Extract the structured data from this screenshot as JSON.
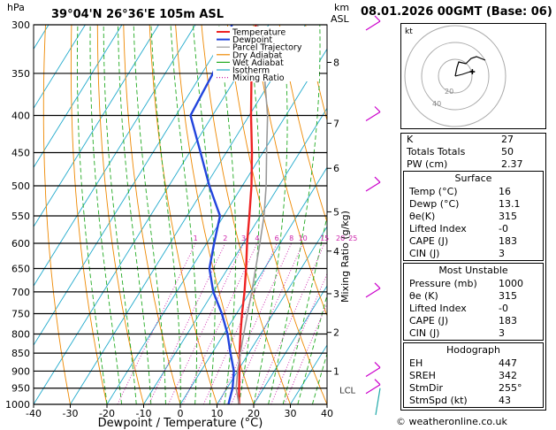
{
  "header": {
    "location": "39°04'N  26°36'E  105m  ASL",
    "hpa_label": "hPa",
    "km_label": "km",
    "asl_label": "ASL",
    "date": "08.01.2026  00GMT  (Base: 06)"
  },
  "chart_data": {
    "type": "line",
    "title": "Skew-T log-P diagram",
    "xlabel": "Dewpoint / Temperature (°C)",
    "ylabel": "hPa",
    "mixing_axis_label": "Mixing Ratio (g/kg)",
    "xlim": [
      -40,
      40
    ],
    "ylim": [
      1000,
      300
    ],
    "pressure_levels": [
      300,
      350,
      400,
      450,
      500,
      550,
      600,
      650,
      700,
      750,
      800,
      850,
      900,
      950,
      1000
    ],
    "x_ticks": [
      -40,
      -30,
      -20,
      -10,
      0,
      10,
      20,
      30,
      40
    ],
    "km_ticks": [
      {
        "km": 8,
        "p": 338
      },
      {
        "km": 7,
        "p": 410
      },
      {
        "km": 6,
        "p": 473
      },
      {
        "km": 5,
        "p": 543
      },
      {
        "km": 4,
        "p": 615
      },
      {
        "km": 3,
        "p": 704
      },
      {
        "km": 2,
        "p": 796
      },
      {
        "km": 1,
        "p": 900
      }
    ],
    "lcl": {
      "label": "LCL",
      "p": 950
    },
    "mixing_ratio_labels": [
      "1",
      "2",
      "3",
      "4",
      "6",
      "8",
      "10",
      "15",
      "20",
      "25"
    ],
    "mixing_ratio_values": [
      1,
      2,
      3,
      4,
      6,
      8,
      10,
      15,
      20,
      25
    ],
    "legend": [
      {
        "name": "Temperature",
        "color": "#ee2222",
        "style": "solid"
      },
      {
        "name": "Dewpoint",
        "color": "#2244dd",
        "style": "solid"
      },
      {
        "name": "Parcel Trajectory",
        "color": "#999999",
        "style": "solid"
      },
      {
        "name": "Dry Adiabat",
        "color": "#ee8800",
        "style": "solid"
      },
      {
        "name": "Wet Adiabat",
        "color": "#22aa22",
        "style": "solid"
      },
      {
        "name": "Isotherm",
        "color": "#22aacc",
        "style": "solid"
      },
      {
        "name": "Mixing Ratio",
        "color": "#cc22aa",
        "style": "dotted"
      }
    ],
    "series": [
      {
        "name": "Temperature",
        "color": "#ee2222",
        "points": [
          [
            1000,
            16
          ],
          [
            950,
            13.3
          ],
          [
            900,
            10.5
          ],
          [
            850,
            7.5
          ],
          [
            800,
            4.5
          ],
          [
            750,
            1.5
          ],
          [
            700,
            -1.5
          ],
          [
            650,
            -5
          ],
          [
            600,
            -9
          ],
          [
            550,
            -13
          ],
          [
            500,
            -17.5
          ],
          [
            450,
            -23
          ],
          [
            400,
            -29.5
          ],
          [
            350,
            -36.5
          ],
          [
            300,
            -43.5
          ]
        ]
      },
      {
        "name": "Dewpoint",
        "color": "#2244dd",
        "points": [
          [
            1000,
            13.1
          ],
          [
            950,
            11.5
          ],
          [
            900,
            9
          ],
          [
            850,
            5
          ],
          [
            800,
            1
          ],
          [
            750,
            -4
          ],
          [
            700,
            -10
          ],
          [
            650,
            -15
          ],
          [
            600,
            -18
          ],
          [
            550,
            -21
          ],
          [
            500,
            -29
          ],
          [
            450,
            -37
          ],
          [
            400,
            -46
          ],
          [
            350,
            -47
          ],
          [
            300,
            -50
          ]
        ]
      },
      {
        "name": "Parcel Trajectory",
        "color": "#999999",
        "points": [
          [
            1000,
            16
          ],
          [
            950,
            12.5
          ],
          [
            900,
            10
          ],
          [
            850,
            7.7
          ],
          [
            800,
            5.4
          ],
          [
            750,
            3
          ],
          [
            700,
            0.5
          ],
          [
            650,
            -2.4
          ],
          [
            600,
            -5.5
          ],
          [
            550,
            -9
          ],
          [
            500,
            -13.5
          ],
          [
            450,
            -19
          ],
          [
            400,
            -25
          ],
          [
            350,
            -33
          ],
          [
            300,
            -43
          ]
        ]
      }
    ],
    "wind_barbs_p": [
      300,
      400,
      500,
      700,
      900,
      950
    ]
  },
  "hodograph": {
    "unit_label": "kt",
    "ring_labels": [
      "20",
      "40"
    ]
  },
  "indices": [
    {
      "label": "K",
      "value": "27"
    },
    {
      "label": "Totals Totals",
      "value": "50"
    },
    {
      "label": "PW (cm)",
      "value": "2.37"
    }
  ],
  "surface": {
    "title": "Surface",
    "rows": [
      {
        "label": "Temp (°C)",
        "value": "16"
      },
      {
        "label": "Dewp (°C)",
        "value": "13.1"
      },
      {
        "label": "θe(K)",
        "value": "315"
      },
      {
        "label": "Lifted Index",
        "value": "-0"
      },
      {
        "label": "CAPE (J)",
        "value": "183"
      },
      {
        "label": "CIN (J)",
        "value": "3"
      }
    ]
  },
  "unstable": {
    "title": "Most Unstable",
    "rows": [
      {
        "label": "Pressure (mb)",
        "value": "1000"
      },
      {
        "label": "θe (K)",
        "value": "315"
      },
      {
        "label": "Lifted Index",
        "value": "-0"
      },
      {
        "label": "CAPE (J)",
        "value": "183"
      },
      {
        "label": "CIN (J)",
        "value": "3"
      }
    ]
  },
  "hodo_table": {
    "title": "Hodograph",
    "rows": [
      {
        "label": "EH",
        "value": "447"
      },
      {
        "label": "SREH",
        "value": "342"
      },
      {
        "label": "StmDir",
        "value": "255°"
      },
      {
        "label": "StmSpd (kt)",
        "value": "43"
      }
    ]
  },
  "credit": {
    "symbol": "©",
    "text": "weatheronline.co.uk"
  }
}
